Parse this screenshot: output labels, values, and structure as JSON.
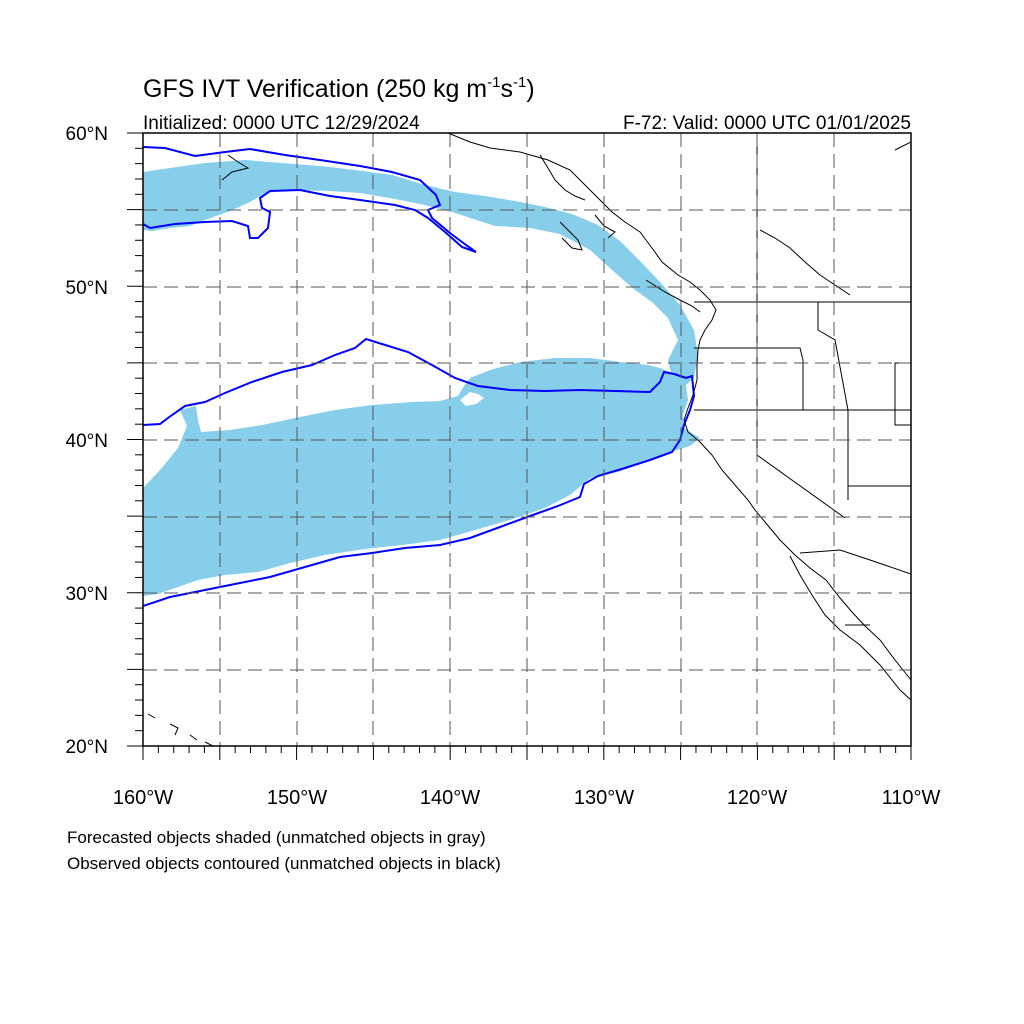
{
  "title": {
    "main": "GFS IVT Verification (250 kg m",
    "sup1": "-1",
    "mid": "s",
    "sup2": "-1",
    "close": ")"
  },
  "subtitle_left": "Initialized: 0000 UTC 12/29/2024",
  "subtitle_right": "F-72: Valid: 0000 UTC 01/01/2025",
  "map": {
    "lon_range": [
      -160,
      -110
    ],
    "lat_range": [
      20,
      60
    ],
    "lon_tick_labels": [
      "160°W",
      "150°W",
      "140°W",
      "130°W",
      "120°W",
      "110°W"
    ],
    "lat_tick_labels": [
      "60°N",
      "50°N",
      "40°N",
      "30°N",
      "20°N"
    ],
    "grid": "dashed, every 5°",
    "colors": {
      "forecast_fill": "#87ceeb",
      "observed_contour": "#0000ff",
      "coastline": "#000000",
      "grid": "#555555"
    }
  },
  "legend": {
    "line1": "Forecasted objects shaded (unmatched objects in gray)",
    "line2": "Observed objects contoured (unmatched objects in black)"
  }
}
